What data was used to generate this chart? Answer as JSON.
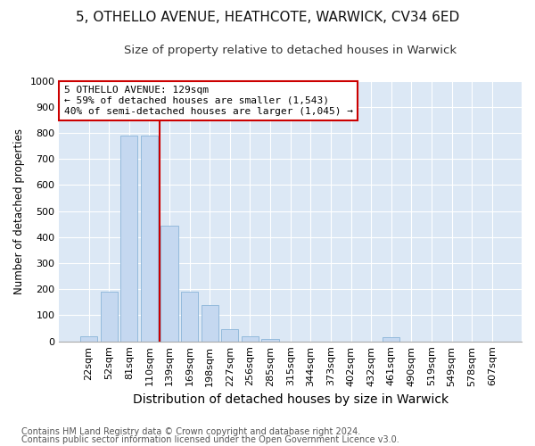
{
  "title_line1": "5, OTHELLO AVENUE, HEATHCOTE, WARWICK, CV34 6ED",
  "title_line2": "Size of property relative to detached houses in Warwick",
  "xlabel": "Distribution of detached houses by size in Warwick",
  "ylabel": "Number of detached properties",
  "footer_line1": "Contains HM Land Registry data © Crown copyright and database right 2024.",
  "footer_line2": "Contains public sector information licensed under the Open Government Licence v3.0.",
  "bar_labels": [
    "22sqm",
    "52sqm",
    "81sqm",
    "110sqm",
    "139sqm",
    "169sqm",
    "198sqm",
    "227sqm",
    "256sqm",
    "285sqm",
    "315sqm",
    "344sqm",
    "373sqm",
    "402sqm",
    "432sqm",
    "461sqm",
    "490sqm",
    "519sqm",
    "549sqm",
    "578sqm",
    "607sqm"
  ],
  "bar_values": [
    20,
    192,
    790,
    790,
    445,
    192,
    140,
    48,
    20,
    10,
    0,
    0,
    0,
    0,
    0,
    15,
    0,
    0,
    0,
    0,
    0
  ],
  "bar_color": "#c5d8f0",
  "bar_edge_color": "#8ab4d8",
  "vline_x": 3.5,
  "annotation_text": "5 OTHELLO AVENUE: 129sqm\n← 59% of detached houses are smaller (1,543)\n40% of semi-detached houses are larger (1,045) →",
  "annotation_box_color": "#ffffff",
  "annotation_box_edge": "#cc0000",
  "vline_color": "#cc0000",
  "fig_bg_color": "#ffffff",
  "plot_bg_color": "#dce8f5",
  "ylim": [
    0,
    1000
  ],
  "yticks": [
    0,
    100,
    200,
    300,
    400,
    500,
    600,
    700,
    800,
    900,
    1000
  ],
  "grid_color": "#ffffff",
  "title_fontsize": 11,
  "subtitle_fontsize": 9.5,
  "xlabel_fontsize": 10,
  "ylabel_fontsize": 8.5,
  "tick_fontsize": 8,
  "annotation_fontsize": 8,
  "footer_fontsize": 7
}
